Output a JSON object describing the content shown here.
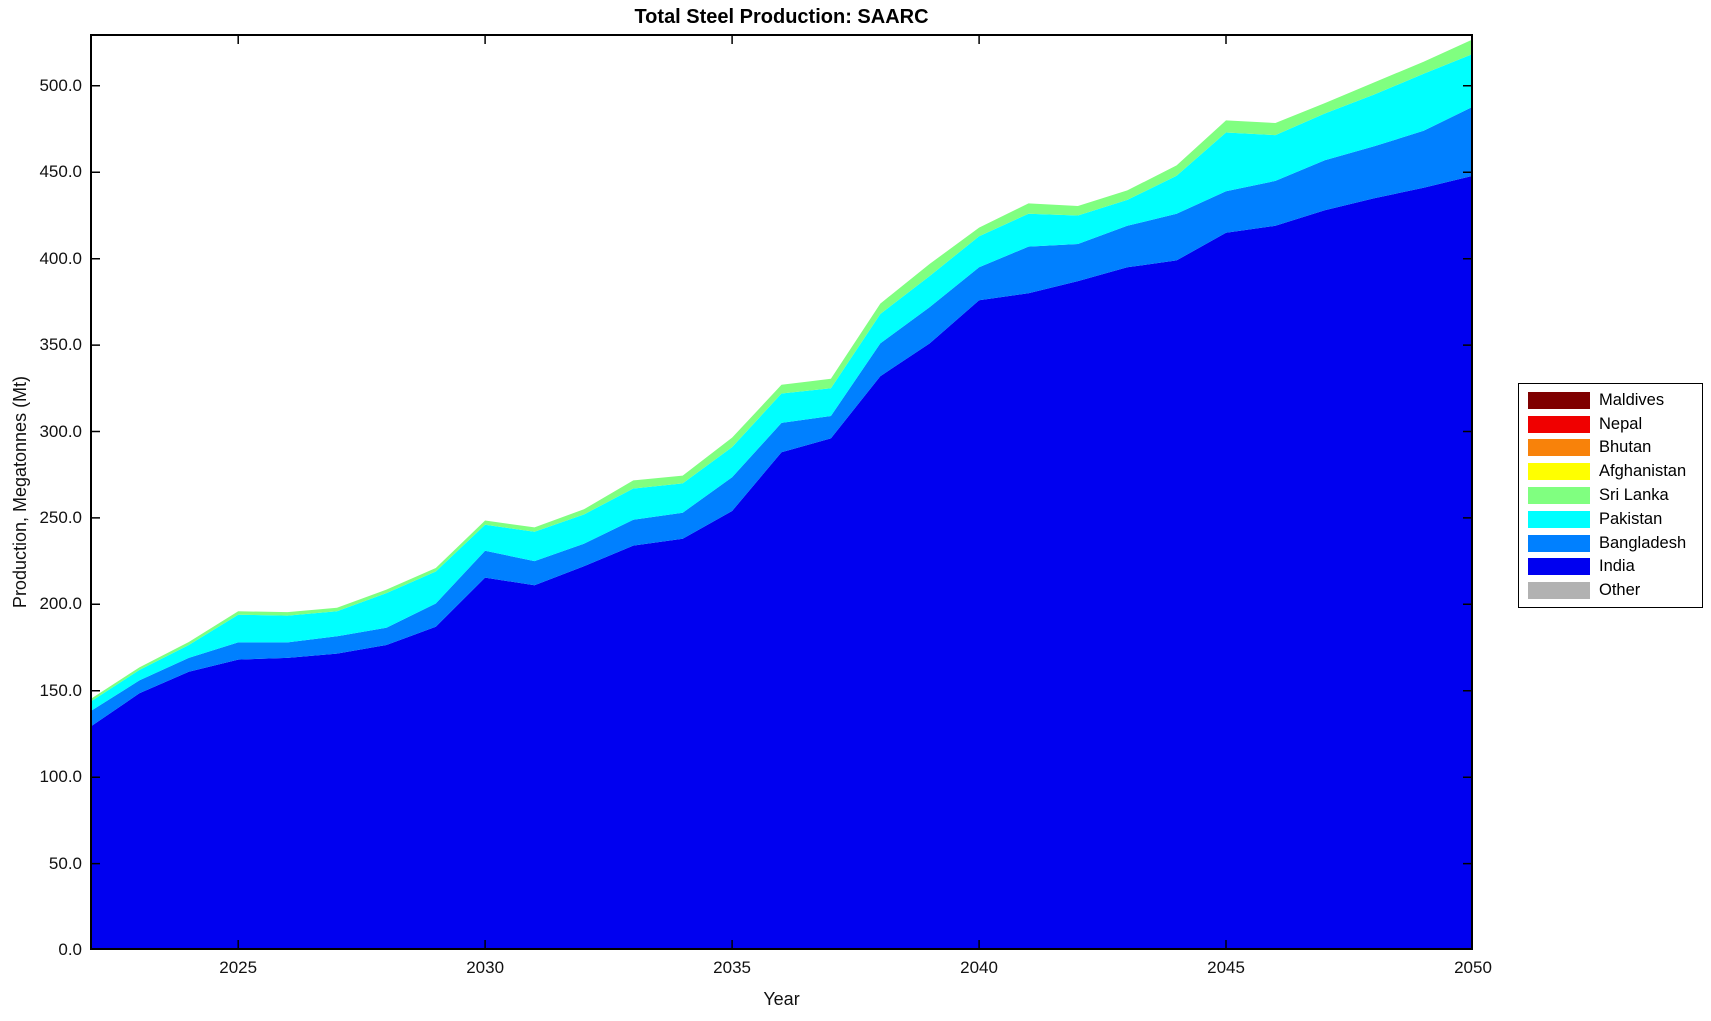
{
  "page": {
    "background": "#ffffff"
  },
  "chart_data": {
    "type": "area",
    "stacked": true,
    "title": "Total Steel Production: SAARC",
    "xlabel": "Year",
    "ylabel": "Production, Megatonnes (Mt)",
    "xlim": [
      2022,
      2050
    ],
    "ylim": [
      0,
      530
    ],
    "grid": false,
    "legend_position": "right-outside",
    "x": [
      2022,
      2023,
      2024,
      2025,
      2026,
      2027,
      2028,
      2029,
      2030,
      2031,
      2032,
      2033,
      2034,
      2035,
      2036,
      2037,
      2038,
      2039,
      2040,
      2041,
      2042,
      2043,
      2044,
      2045,
      2046,
      2047,
      2048,
      2049,
      2050
    ],
    "x_ticks": [
      {
        "value": 2025,
        "label": "2025"
      },
      {
        "value": 2030,
        "label": "2030"
      },
      {
        "value": 2035,
        "label": "2035"
      },
      {
        "value": 2040,
        "label": "2040"
      },
      {
        "value": 2045,
        "label": "2045"
      },
      {
        "value": 2050,
        "label": "2050"
      }
    ],
    "y_ticks": [
      {
        "value": 0,
        "label": "0.0"
      },
      {
        "value": 50,
        "label": "50.0"
      },
      {
        "value": 100,
        "label": "100.0"
      },
      {
        "value": 150,
        "label": "150.0"
      },
      {
        "value": 200,
        "label": "200.0"
      },
      {
        "value": 250,
        "label": "250.0"
      },
      {
        "value": 300,
        "label": "300.0"
      },
      {
        "value": 350,
        "label": "350.0"
      },
      {
        "value": 400,
        "label": "400.0"
      },
      {
        "value": 450,
        "label": "450.0"
      },
      {
        "value": 500,
        "label": "500.0"
      }
    ],
    "series_note": "listed bottom-to-top of stack; legend shows reverse order",
    "series": [
      {
        "name": "Other",
        "color": "#b2b2b2",
        "values": [
          0,
          0,
          0,
          0,
          0,
          0,
          0,
          0,
          0,
          0,
          0,
          0,
          0,
          0,
          0,
          0,
          0,
          0,
          0,
          0,
          0,
          0,
          0,
          0,
          0,
          0,
          0,
          0,
          0
        ]
      },
      {
        "name": "India",
        "color": "#0000f0",
        "values": [
          129,
          148.5,
          161,
          168,
          169,
          171.5,
          176.5,
          187,
          215.5,
          211,
          222,
          234,
          238,
          254,
          288,
          296,
          332,
          351,
          376,
          380,
          387,
          395,
          399,
          415,
          419,
          428,
          435,
          441,
          448
        ]
      },
      {
        "name": "Bangladesh",
        "color": "#0080ff",
        "values": [
          9,
          7.5,
          8,
          10,
          9,
          10,
          10,
          13.5,
          15.5,
          14,
          13,
          15,
          15,
          19.5,
          17,
          13,
          19,
          21,
          19,
          27,
          21.5,
          24,
          27,
          24,
          26,
          29,
          30,
          33,
          40
        ]
      },
      {
        "name": "Pakistan",
        "color": "#00ffff",
        "values": [
          5.5,
          6,
          7.5,
          16,
          15.5,
          14.5,
          20,
          18.5,
          15,
          17,
          17,
          18,
          17,
          17.5,
          17,
          16,
          17,
          18,
          18,
          19,
          16.5,
          15,
          22,
          34,
          26.5,
          27,
          30,
          33,
          30.5
        ]
      },
      {
        "name": "Sri Lanka",
        "color": "#80ff80",
        "values": [
          1.5,
          1.5,
          1.7,
          2,
          2,
          2,
          2,
          2,
          2.5,
          2.5,
          3,
          4.7,
          4.5,
          5.5,
          5,
          5.5,
          6,
          7,
          5,
          6,
          5.5,
          5.5,
          6,
          7,
          7,
          6,
          7,
          7,
          8.5
        ]
      },
      {
        "name": "Afghanistan",
        "color": "#ffff00",
        "values": [
          0,
          0,
          0,
          0,
          0,
          0,
          0,
          0,
          0,
          0,
          0,
          0,
          0,
          0,
          0,
          0,
          0,
          0,
          0,
          0,
          0,
          0,
          0,
          0,
          0,
          0,
          0,
          0,
          0
        ]
      },
      {
        "name": "Bhutan",
        "color": "#f8820a",
        "values": [
          0,
          0,
          0,
          0,
          0,
          0,
          0,
          0,
          0,
          0,
          0,
          0,
          0,
          0,
          0,
          0,
          0,
          0,
          0,
          0,
          0,
          0,
          0,
          0,
          0,
          0,
          0,
          0,
          0
        ]
      },
      {
        "name": "Nepal",
        "color": "#f00000",
        "values": [
          0,
          0,
          0,
          0,
          0,
          0,
          0,
          0,
          0,
          0,
          0,
          0,
          0,
          0,
          0,
          0,
          0,
          0,
          0,
          0,
          0,
          0,
          0,
          0,
          0,
          0,
          0,
          0,
          0
        ]
      },
      {
        "name": "Maldives",
        "color": "#7f0000",
        "values": [
          0,
          0,
          0,
          0,
          0,
          0,
          0,
          0,
          0,
          0,
          0,
          0,
          0,
          0,
          0,
          0,
          0,
          0,
          0,
          0,
          0,
          0,
          0,
          0,
          0,
          0,
          0,
          0,
          0
        ]
      }
    ]
  }
}
